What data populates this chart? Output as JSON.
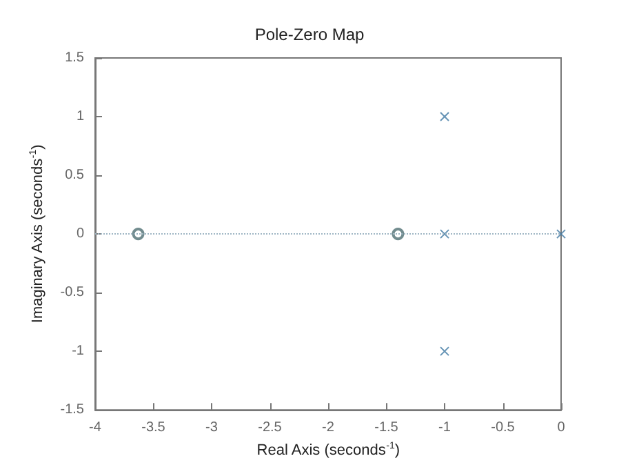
{
  "chart_data": {
    "type": "scatter",
    "title": "Pole-Zero Map",
    "xlabel": "Real Axis (seconds$^{-1}$)",
    "ylabel": "Imaginary Axis (seconds$^{-1}$)",
    "series": [
      {
        "color": "#4f6f73",
        "marker": "circle",
        "x": [
          -3.63,
          -1.4
        ],
        "values": [
          0,
          0
        ]
      },
      {
        "color": "#3f78a3",
        "marker": "cross",
        "x": [
          -1,
          -1,
          -1,
          0
        ],
        "values": [
          1,
          0,
          -1,
          0
        ]
      }
    ],
    "ref_lines": [
      {
        "axis": "y",
        "value": 0,
        "color": "#9fb6c4",
        "line_style": "dotted"
      }
    ],
    "xlim": [
      -4,
      0
    ],
    "xticks": [
      -4,
      -3.5,
      -3,
      -2.5,
      -2,
      -1.5,
      -1,
      -0.5,
      0
    ],
    "ylim": [
      -1.5,
      1.5
    ],
    "yticks": [
      -1.5,
      -1,
      -0.5,
      0,
      0.5,
      1,
      1.5
    ],
    "grid": false
  }
}
